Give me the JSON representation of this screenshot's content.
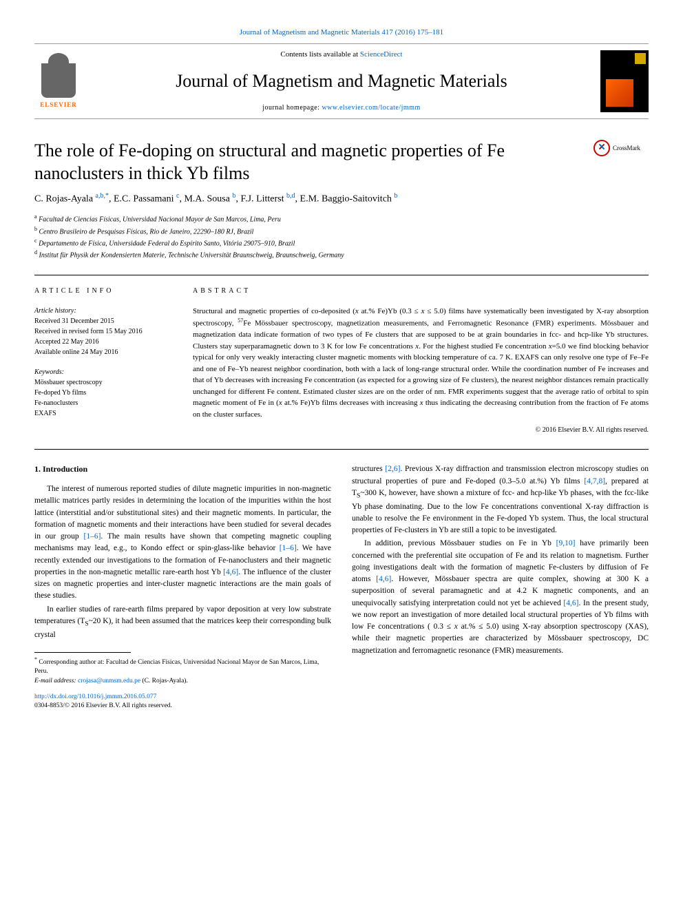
{
  "top_link": "Journal of Magnetism and Magnetic Materials 417 (2016) 175–181",
  "header": {
    "contents_prefix": "Contents lists available at ",
    "contents_link": "ScienceDirect",
    "journal_name": "Journal of Magnetism and Magnetic Materials",
    "homepage_prefix": "journal homepage: ",
    "homepage_link": "www.elsevier.com/locate/jmmm",
    "elsevier": "ELSEVIER",
    "crossmark": "CrossMark"
  },
  "title": "The role of Fe-doping on structural and magnetic properties of Fe nanoclusters in thick Yb films",
  "authors_html": "C. Rojas-Ayala <sup>a,b,*</sup>, E.C. Passamani <sup>c</sup>, M.A. Sousa <sup>b</sup>, F.J. Litterst <sup>b,d</sup>, E.M. Baggio-Saitovitch <sup>b</sup>",
  "affiliations": [
    {
      "sup": "a",
      "text": "Facultad de Ciencias Físicas, Universidad Nacional Mayor de San Marcos, Lima, Peru"
    },
    {
      "sup": "b",
      "text": "Centro Brasileiro de Pesquisas Físicas, Rio de Janeiro, 22290–180 RJ, Brazil"
    },
    {
      "sup": "c",
      "text": "Departamento de Física, Universidade Federal do Espírito Santo, Vitória 29075–910, Brazil"
    },
    {
      "sup": "d",
      "text": "Institut für Physik der Kondensierten Materie, Technische Universität Braunschweig, Braunschweig, Germany"
    }
  ],
  "info_label": "ARTICLE INFO",
  "abstract_label": "ABSTRACT",
  "history": {
    "label": "Article history:",
    "received": "Received 31 December 2015",
    "revised": "Received in revised form 15 May 2016",
    "accepted": "Accepted 22 May 2016",
    "online": "Available online 24 May 2016"
  },
  "keywords": {
    "label": "Keywords:",
    "items": [
      "Mössbauer spectroscopy",
      "Fe-doped Yb films",
      "Fe-nanoclusters",
      "EXAFS"
    ]
  },
  "abstract_html": "Structural and magnetic properties of co-deposited (<i>x</i> at.% Fe)Yb (0.3 ≤ <i>x</i> ≤ 5.0) films have systematically been investigated by X-ray absorption spectroscopy, <sup>57</sup>Fe Mössbauer spectroscopy, magnetization measurements, and Ferromagnetic Resonance (FMR) experiments. Mössbauer and magnetization data indicate formation of two types of Fe clusters that are supposed to be at grain boundaries in fcc- and hcp-like Yb structures. Clusters stay superparamagnetic down to 3 K for low Fe concentrations <i>x</i>. For the highest studied Fe concentration <i>x</i>=5.0 we find blocking behavior typical for only very weakly interacting cluster magnetic moments with blocking temperature of ca. 7 K. EXAFS can only resolve one type of Fe–Fe and one of Fe–Yb nearest neighbor coordination, both with a lack of long-range structural order. While the coordination number of Fe increases and that of Yb decreases with increasing Fe concentration (as expected for a growing size of Fe clusters), the nearest neighbor distances remain practically unchanged for different Fe content. Estimated cluster sizes are on the order of nm. FMR experiments suggest that the average ratio of orbital to spin magnetic moment of Fe in (<i>x</i> at.% Fe)Yb films decreases with increasing <i>x</i> thus indicating the decreasing contribution from the fraction of Fe atoms on the cluster surfaces.",
  "copyright": "© 2016 Elsevier B.V. All rights reserved.",
  "section1": "1. Introduction",
  "para1_html": "The interest of numerous reported studies of dilute magnetic impurities in non-magnetic metallic matrices partly resides in determining the location of the impurities within the host lattice (interstitial and/or substitutional sites) and their magnetic moments. In particular, the formation of magnetic moments and their interactions have been studied for several decades in our group <a>[1–6]</a>. The main results have shown that competing magnetic coupling mechanisms may lead, e.g., to Kondo effect or spin-glass-like behavior <a>[1–6]</a>. We have recently extended our investigations to the formation of Fe-nanoclusters and their magnetic properties in the non-magnetic metallic rare-earth host Yb <a>[4,6]</a>. The influence of the cluster sizes on magnetic properties and inter-cluster magnetic interactions are the main goals of these studies.",
  "para2_html": "In earlier studies of rare-earth films prepared by vapor deposition at very low substrate temperatures (T<sub>S</sub>~20 K), it had been assumed that the matrices keep their corresponding bulk crystal",
  "para3_html": "structures <a>[2,6]</a>. Previous X-ray diffraction and transmission electron microscopy studies on structural properties of pure and Fe-doped (0.3–5.0 at.%) Yb films <a>[4,7,8]</a>, prepared at T<sub>S</sub>~300 K, however, have shown a mixture of fcc- and hcp-like Yb phases, with the fcc-like Yb phase dominating. Due to the low Fe concentrations conventional X-ray diffraction is unable to resolve the Fe environment in the Fe-doped Yb system. Thus, the local structural properties of Fe-clusters in Yb are still a topic to be investigated.",
  "para4_html": "In addition, previous Mössbauer studies on Fe in Yb <a>[9,10]</a> have primarily been concerned with the preferential site occupation of Fe and its relation to magnetism. Further going investigations dealt with the formation of magnetic Fe-clusters by diffusion of Fe atoms <a>[4,6]</a>. However, Mössbauer spectra are quite complex, showing at 300 K a superposition of several paramagnetic and at 4.2 K magnetic components, and an unequivocally satisfying interpretation could not yet be achieved <a>[4,6]</a>. In the present study, we now report an investigation of more detailed local structural properties of Yb films with low Fe concentrations ( 0.3 ≤ <i>x</i> at.% ≤ 5.0) using X-ray absorption spectroscopy (XAS), while their magnetic properties are characterized by Mössbauer spectroscopy, DC magnetization and ferromagnetic resonance (FMR) measurements.",
  "footnote": {
    "corr": "* Corresponding author at: Facultad de Ciencias Físicas, Universidad Nacional Mayor de San Marcos, Lima, Peru.",
    "email_label": "E-mail address: ",
    "email": "crojasa@unmsm.edu.pe",
    "email_suffix": " (C. Rojas-Ayala)."
  },
  "bottom": {
    "doi": "http://dx.doi.org/10.1016/j.jmmm.2016.05.077",
    "issn": "0304-8853/© 2016 Elsevier B.V. All rights reserved."
  },
  "colors": {
    "link": "#0066cc",
    "elsevier_orange": "#ff6600",
    "crossmark_red": "#cc0000"
  }
}
